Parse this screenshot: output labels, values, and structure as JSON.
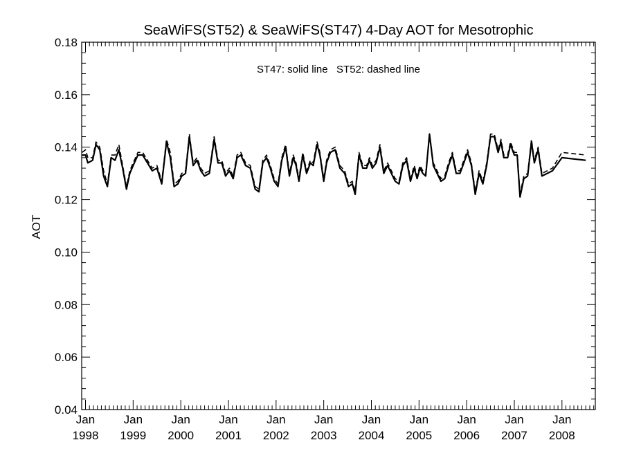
{
  "chart_data": {
    "type": "line",
    "title": "SeaWiFS(ST52) & SeaWiFS(ST47) 4-Day AOT for Mesotrophic",
    "ylabel": "AOT",
    "xlabel": "",
    "annotation": "ST47: solid line   ST52: dashed line",
    "ylim": [
      0.04,
      0.18
    ],
    "yticks": [
      0.04,
      0.06,
      0.08,
      0.1,
      0.12,
      0.14,
      0.16,
      0.18
    ],
    "ytick_labels": [
      "0.04",
      "0.06",
      "0.08",
      "0.10",
      "0.12",
      "0.14",
      "0.16",
      "0.18"
    ],
    "xlim": [
      1997.92,
      2008.7
    ],
    "xticks": [
      {
        "x": 1998,
        "month": "Jan",
        "year": "1998"
      },
      {
        "x": 1999,
        "month": "Jan",
        "year": "1999"
      },
      {
        "x": 2000,
        "month": "Jan",
        "year": "2000"
      },
      {
        "x": 2001,
        "month": "Jan",
        "year": "2001"
      },
      {
        "x": 2002,
        "month": "Jan",
        "year": "2002"
      },
      {
        "x": 2003,
        "month": "Jan",
        "year": "2003"
      },
      {
        "x": 2004,
        "month": "Jan",
        "year": "2004"
      },
      {
        "x": 2005,
        "month": "Jan",
        "year": "2005"
      },
      {
        "x": 2006,
        "month": "Jan",
        "year": "2006"
      },
      {
        "x": 2007,
        "month": "Jan",
        "year": "2007"
      },
      {
        "x": 2008,
        "month": "Jan",
        "year": "2008"
      }
    ],
    "grid": false,
    "series": [
      {
        "name": "ST47",
        "style": "solid",
        "points": [
          [
            1997.93,
            0.137
          ],
          [
            1998.0,
            0.137
          ],
          [
            1998.05,
            0.134
          ],
          [
            1998.15,
            0.135
          ],
          [
            1998.22,
            0.141
          ],
          [
            1998.3,
            0.139
          ],
          [
            1998.38,
            0.129
          ],
          [
            1998.46,
            0.125
          ],
          [
            1998.54,
            0.136
          ],
          [
            1998.62,
            0.135
          ],
          [
            1998.7,
            0.139
          ],
          [
            1998.78,
            0.132
          ],
          [
            1998.86,
            0.124
          ],
          [
            1998.93,
            0.13
          ],
          [
            1999.0,
            0.133
          ],
          [
            1999.1,
            0.137
          ],
          [
            1999.2,
            0.137
          ],
          [
            1999.3,
            0.134
          ],
          [
            1999.4,
            0.131
          ],
          [
            1999.5,
            0.132
          ],
          [
            1999.6,
            0.126
          ],
          [
            1999.7,
            0.142
          ],
          [
            1999.78,
            0.136
          ],
          [
            1999.86,
            0.125
          ],
          [
            1999.94,
            0.126
          ],
          [
            2000.02,
            0.129
          ],
          [
            2000.1,
            0.13
          ],
          [
            2000.18,
            0.144
          ],
          [
            2000.26,
            0.133
          ],
          [
            2000.34,
            0.135
          ],
          [
            2000.42,
            0.131
          ],
          [
            2000.5,
            0.129
          ],
          [
            2000.6,
            0.13
          ],
          [
            2000.7,
            0.143
          ],
          [
            2000.78,
            0.134
          ],
          [
            2000.86,
            0.134
          ],
          [
            2000.94,
            0.129
          ],
          [
            2001.02,
            0.131
          ],
          [
            2001.1,
            0.128
          ],
          [
            2001.18,
            0.136
          ],
          [
            2001.26,
            0.137
          ],
          [
            2001.36,
            0.133
          ],
          [
            2001.46,
            0.132
          ],
          [
            2001.56,
            0.124
          ],
          [
            2001.64,
            0.123
          ],
          [
            2001.72,
            0.134
          ],
          [
            2001.8,
            0.136
          ],
          [
            2001.88,
            0.132
          ],
          [
            2001.96,
            0.127
          ],
          [
            2002.04,
            0.125
          ],
          [
            2002.12,
            0.135
          ],
          [
            2002.2,
            0.14
          ],
          [
            2002.28,
            0.129
          ],
          [
            2002.36,
            0.136
          ],
          [
            2002.42,
            0.133
          ],
          [
            2002.48,
            0.127
          ],
          [
            2002.56,
            0.137
          ],
          [
            2002.64,
            0.13
          ],
          [
            2002.72,
            0.134
          ],
          [
            2002.78,
            0.133
          ],
          [
            2002.86,
            0.141
          ],
          [
            2002.92,
            0.137
          ],
          [
            2003.0,
            0.127
          ],
          [
            2003.06,
            0.134
          ],
          [
            2003.14,
            0.138
          ],
          [
            2003.24,
            0.139
          ],
          [
            2003.34,
            0.132
          ],
          [
            2003.44,
            0.13
          ],
          [
            2003.52,
            0.125
          ],
          [
            2003.6,
            0.126
          ],
          [
            2003.66,
            0.122
          ],
          [
            2003.74,
            0.137
          ],
          [
            2003.82,
            0.132
          ],
          [
            2003.9,
            0.132
          ],
          [
            2003.96,
            0.135
          ],
          [
            2004.02,
            0.132
          ],
          [
            2004.1,
            0.134
          ],
          [
            2004.18,
            0.14
          ],
          [
            2004.26,
            0.13
          ],
          [
            2004.34,
            0.133
          ],
          [
            2004.42,
            0.13
          ],
          [
            2004.5,
            0.127
          ],
          [
            2004.58,
            0.126
          ],
          [
            2004.66,
            0.133
          ],
          [
            2004.74,
            0.135
          ],
          [
            2004.82,
            0.127
          ],
          [
            2004.9,
            0.132
          ],
          [
            2004.96,
            0.128
          ],
          [
            2005.02,
            0.132
          ],
          [
            2005.08,
            0.13
          ],
          [
            2005.14,
            0.129
          ],
          [
            2005.22,
            0.145
          ],
          [
            2005.3,
            0.133
          ],
          [
            2005.38,
            0.13
          ],
          [
            2005.46,
            0.127
          ],
          [
            2005.54,
            0.128
          ],
          [
            2005.62,
            0.133
          ],
          [
            2005.7,
            0.137
          ],
          [
            2005.78,
            0.13
          ],
          [
            2005.86,
            0.13
          ],
          [
            2005.94,
            0.134
          ],
          [
            2006.02,
            0.138
          ],
          [
            2006.1,
            0.133
          ],
          [
            2006.18,
            0.122
          ],
          [
            2006.26,
            0.13
          ],
          [
            2006.34,
            0.126
          ],
          [
            2006.42,
            0.133
          ],
          [
            2006.5,
            0.144
          ],
          [
            2006.58,
            0.144
          ],
          [
            2006.66,
            0.138
          ],
          [
            2006.72,
            0.142
          ],
          [
            2006.78,
            0.136
          ],
          [
            2006.86,
            0.136
          ],
          [
            2006.92,
            0.141
          ],
          [
            2007.0,
            0.137
          ],
          [
            2007.06,
            0.137
          ],
          [
            2007.12,
            0.121
          ],
          [
            2007.2,
            0.128
          ],
          [
            2007.28,
            0.129
          ],
          [
            2007.36,
            0.142
          ],
          [
            2007.42,
            0.134
          ],
          [
            2007.5,
            0.139
          ],
          [
            2007.58,
            0.129
          ],
          [
            2007.8,
            0.131
          ],
          [
            2008.0,
            0.136
          ],
          [
            2008.5,
            0.135
          ]
        ]
      },
      {
        "name": "ST52",
        "style": "dashed",
        "points": [
          [
            1997.93,
            0.138
          ],
          [
            1998.0,
            0.139
          ],
          [
            1998.05,
            0.136
          ],
          [
            1998.15,
            0.136
          ],
          [
            1998.22,
            0.142
          ],
          [
            1998.3,
            0.14
          ],
          [
            1998.38,
            0.131
          ],
          [
            1998.46,
            0.126
          ],
          [
            1998.54,
            0.137
          ],
          [
            1998.62,
            0.137
          ],
          [
            1998.7,
            0.141
          ],
          [
            1998.78,
            0.133
          ],
          [
            1998.86,
            0.125
          ],
          [
            1998.93,
            0.131
          ],
          [
            1999.0,
            0.134
          ],
          [
            1999.1,
            0.138
          ],
          [
            1999.2,
            0.138
          ],
          [
            1999.3,
            0.135
          ],
          [
            1999.4,
            0.132
          ],
          [
            1999.5,
            0.133
          ],
          [
            1999.6,
            0.127
          ],
          [
            1999.7,
            0.143
          ],
          [
            1999.78,
            0.138
          ],
          [
            1999.86,
            0.126
          ],
          [
            1999.94,
            0.127
          ],
          [
            2000.02,
            0.13
          ],
          [
            2000.1,
            0.131
          ],
          [
            2000.18,
            0.145
          ],
          [
            2000.26,
            0.134
          ],
          [
            2000.34,
            0.136
          ],
          [
            2000.42,
            0.132
          ],
          [
            2000.5,
            0.13
          ],
          [
            2000.6,
            0.131
          ],
          [
            2000.7,
            0.144
          ],
          [
            2000.78,
            0.135
          ],
          [
            2000.86,
            0.135
          ],
          [
            2000.94,
            0.13
          ],
          [
            2001.02,
            0.132
          ],
          [
            2001.1,
            0.129
          ],
          [
            2001.18,
            0.137
          ],
          [
            2001.26,
            0.138
          ],
          [
            2001.36,
            0.134
          ],
          [
            2001.46,
            0.133
          ],
          [
            2001.56,
            0.125
          ],
          [
            2001.64,
            0.124
          ],
          [
            2001.72,
            0.135
          ],
          [
            2001.8,
            0.137
          ],
          [
            2001.88,
            0.133
          ],
          [
            2001.96,
            0.128
          ],
          [
            2002.04,
            0.126
          ],
          [
            2002.12,
            0.136
          ],
          [
            2002.2,
            0.141
          ],
          [
            2002.28,
            0.13
          ],
          [
            2002.36,
            0.137
          ],
          [
            2002.42,
            0.134
          ],
          [
            2002.48,
            0.128
          ],
          [
            2002.56,
            0.138
          ],
          [
            2002.64,
            0.131
          ],
          [
            2002.72,
            0.135
          ],
          [
            2002.78,
            0.134
          ],
          [
            2002.86,
            0.142
          ],
          [
            2002.92,
            0.138
          ],
          [
            2003.0,
            0.128
          ],
          [
            2003.06,
            0.135
          ],
          [
            2003.14,
            0.139
          ],
          [
            2003.24,
            0.14
          ],
          [
            2003.34,
            0.133
          ],
          [
            2003.44,
            0.131
          ],
          [
            2003.52,
            0.126
          ],
          [
            2003.6,
            0.127
          ],
          [
            2003.66,
            0.123
          ],
          [
            2003.74,
            0.138
          ],
          [
            2003.82,
            0.133
          ],
          [
            2003.9,
            0.133
          ],
          [
            2003.96,
            0.136
          ],
          [
            2004.02,
            0.133
          ],
          [
            2004.1,
            0.135
          ],
          [
            2004.18,
            0.141
          ],
          [
            2004.26,
            0.131
          ],
          [
            2004.34,
            0.134
          ],
          [
            2004.42,
            0.131
          ],
          [
            2004.5,
            0.128
          ],
          [
            2004.58,
            0.127
          ],
          [
            2004.66,
            0.134
          ],
          [
            2004.74,
            0.136
          ],
          [
            2004.82,
            0.128
          ],
          [
            2004.9,
            0.133
          ],
          [
            2004.96,
            0.129
          ],
          [
            2005.02,
            0.133
          ],
          [
            2005.08,
            0.131
          ],
          [
            2005.14,
            0.13
          ],
          [
            2005.22,
            0.145
          ],
          [
            2005.3,
            0.134
          ],
          [
            2005.38,
            0.131
          ],
          [
            2005.46,
            0.128
          ],
          [
            2005.54,
            0.129
          ],
          [
            2005.62,
            0.134
          ],
          [
            2005.7,
            0.138
          ],
          [
            2005.78,
            0.131
          ],
          [
            2005.86,
            0.131
          ],
          [
            2005.94,
            0.135
          ],
          [
            2006.02,
            0.139
          ],
          [
            2006.1,
            0.134
          ],
          [
            2006.18,
            0.123
          ],
          [
            2006.26,
            0.131
          ],
          [
            2006.34,
            0.127
          ],
          [
            2006.42,
            0.134
          ],
          [
            2006.5,
            0.145
          ],
          [
            2006.58,
            0.145
          ],
          [
            2006.66,
            0.139
          ],
          [
            2006.72,
            0.143
          ],
          [
            2006.78,
            0.137
          ],
          [
            2006.86,
            0.137
          ],
          [
            2006.92,
            0.142
          ],
          [
            2007.0,
            0.138
          ],
          [
            2007.06,
            0.138
          ],
          [
            2007.12,
            0.122
          ],
          [
            2007.2,
            0.129
          ],
          [
            2007.28,
            0.13
          ],
          [
            2007.36,
            0.143
          ],
          [
            2007.42,
            0.135
          ],
          [
            2007.5,
            0.14
          ],
          [
            2007.58,
            0.13
          ],
          [
            2007.8,
            0.132
          ],
          [
            2008.0,
            0.138
          ],
          [
            2008.5,
            0.137
          ]
        ]
      }
    ]
  }
}
